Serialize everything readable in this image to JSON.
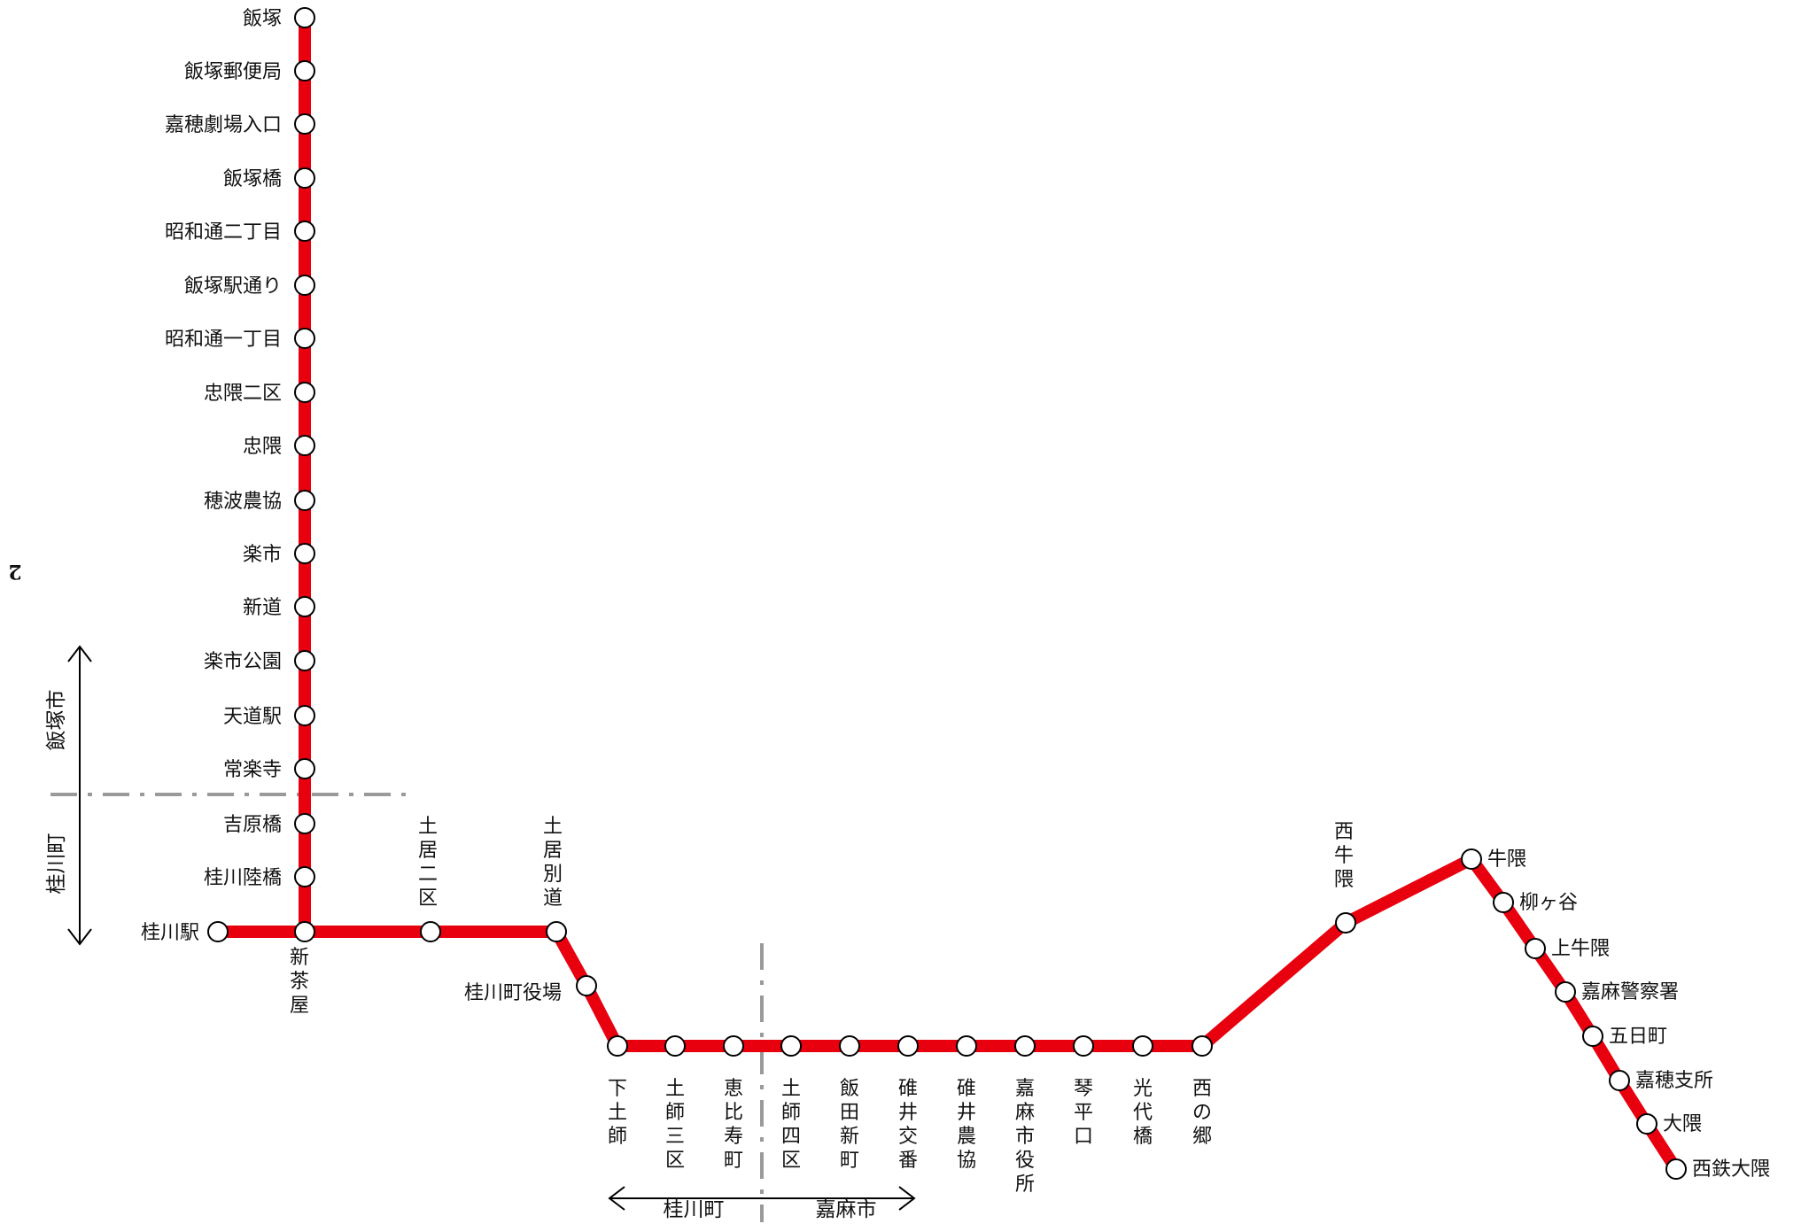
{
  "page_number": "2",
  "colors": {
    "route_line": "#e8000f",
    "boundary_line": "#9a9a9a",
    "station_fill": "#ffffff",
    "station_stroke": "#000000",
    "text": "#111111"
  },
  "route": {
    "north_branch": [
      "飯塚",
      "飯塚郵便局",
      "嘉穂劇場入口",
      "飯塚橋",
      "昭和通二丁目",
      "飯塚駅通り",
      "昭和通一丁目",
      "忠隈二区",
      "忠隈",
      "穂波農協",
      "楽市",
      "新道",
      "楽市公園",
      "天道駅",
      "常楽寺",
      "吉原橋",
      "桂川陸橋"
    ],
    "spur_terminal": "桂川駅",
    "junction": "新茶屋",
    "upper_stations": [
      "土居二区",
      "土居別道"
    ],
    "mid_station": "桂川町役場",
    "lower_stations": [
      "下土師",
      "土師三区",
      "恵比寿町",
      "土師四区",
      "飯田新町",
      "碓井交番",
      "碓井農協",
      "嘉麻市役所",
      "琴平口",
      "光代橋",
      "西の郷"
    ],
    "east_stations": [
      "西牛隈",
      "牛隈",
      "柳ヶ谷",
      "上牛隈",
      "嘉麻警察署",
      "五日町",
      "嘉穂支所",
      "大隈",
      "西鉄大隈"
    ]
  },
  "areas": {
    "vertical_upper": "飯塚市",
    "vertical_lower": "桂川町",
    "horizontal_left": "桂川町",
    "horizontal_right": "嘉麻市"
  },
  "icons": {
    "station": "station-circle-icon",
    "area_arrow": "double-arrow-icon"
  }
}
